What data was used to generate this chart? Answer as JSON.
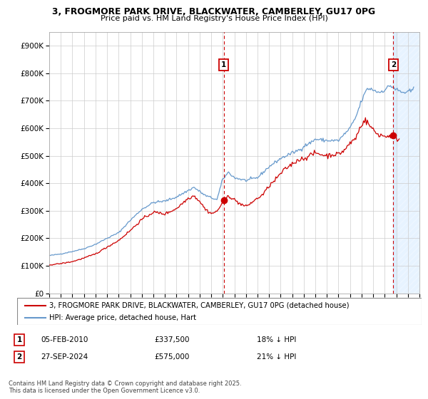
{
  "title1": "3, FROGMORE PARK DRIVE, BLACKWATER, CAMBERLEY, GU17 0PG",
  "title2": "Price paid vs. HM Land Registry's House Price Index (HPI)",
  "legend_entry1": "3, FROGMORE PARK DRIVE, BLACKWATER, CAMBERLEY, GU17 0PG (detached house)",
  "legend_entry2": "HPI: Average price, detached house, Hart",
  "annotation1_label": "1",
  "annotation1_date": "05-FEB-2010",
  "annotation1_price": "£337,500",
  "annotation1_hpi": "18% ↓ HPI",
  "annotation2_label": "2",
  "annotation2_date": "27-SEP-2024",
  "annotation2_price": "£575,000",
  "annotation2_hpi": "21% ↓ HPI",
  "footer": "Contains HM Land Registry data © Crown copyright and database right 2025.\nThis data is licensed under the Open Government Licence v3.0.",
  "color_red": "#cc0000",
  "color_blue": "#6699cc",
  "color_vline": "#cc0000",
  "bg_color": "#ffffff",
  "grid_color": "#cccccc",
  "shade_color": "#ddeeff",
  "ylim_max": 950000,
  "yticks": [
    0,
    100000,
    200000,
    300000,
    400000,
    500000,
    600000,
    700000,
    800000,
    900000
  ],
  "ytick_labels": [
    "£0",
    "£100K",
    "£200K",
    "£300K",
    "£400K",
    "£500K",
    "£600K",
    "£700K",
    "£800K",
    "£900K"
  ],
  "xlim_min": 1995.0,
  "xlim_max": 2027.0,
  "xticks": [
    1995,
    1996,
    1997,
    1998,
    1999,
    2000,
    2001,
    2002,
    2003,
    2004,
    2005,
    2006,
    2007,
    2008,
    2009,
    2010,
    2011,
    2012,
    2013,
    2014,
    2015,
    2016,
    2017,
    2018,
    2019,
    2020,
    2021,
    2022,
    2023,
    2024,
    2025,
    2026,
    2027
  ],
  "vline1_x": 2010.09,
  "vline2_x": 2024.74,
  "marker1_x": 2010.09,
  "marker1_y": 337500,
  "marker2_x": 2024.74,
  "marker2_y": 575000,
  "hpi_anchors": [
    [
      1995.0,
      137000
    ],
    [
      1996.0,
      143000
    ],
    [
      1997.0,
      152000
    ],
    [
      1998.0,
      162000
    ],
    [
      1999.0,
      178000
    ],
    [
      2000.0,
      200000
    ],
    [
      2001.0,
      220000
    ],
    [
      2002.0,
      265000
    ],
    [
      2003.0,
      305000
    ],
    [
      2004.0,
      330000
    ],
    [
      2005.0,
      335000
    ],
    [
      2006.0,
      350000
    ],
    [
      2007.5,
      385000
    ],
    [
      2008.5,
      355000
    ],
    [
      2009.5,
      340000
    ],
    [
      2010.0,
      415000
    ],
    [
      2010.5,
      440000
    ],
    [
      2011.0,
      420000
    ],
    [
      2012.0,
      410000
    ],
    [
      2013.0,
      420000
    ],
    [
      2014.0,
      460000
    ],
    [
      2015.0,
      490000
    ],
    [
      2016.0,
      510000
    ],
    [
      2016.8,
      525000
    ],
    [
      2017.0,
      535000
    ],
    [
      2017.5,
      545000
    ],
    [
      2018.0,
      560000
    ],
    [
      2019.0,
      555000
    ],
    [
      2020.0,
      555000
    ],
    [
      2021.0,
      600000
    ],
    [
      2021.5,
      640000
    ],
    [
      2022.0,
      700000
    ],
    [
      2022.5,
      745000
    ],
    [
      2023.0,
      740000
    ],
    [
      2023.5,
      730000
    ],
    [
      2024.0,
      740000
    ],
    [
      2024.5,
      755000
    ],
    [
      2025.0,
      740000
    ],
    [
      2025.5,
      730000
    ],
    [
      2026.0,
      730000
    ],
    [
      2026.5,
      740000
    ]
  ],
  "prop_anchors": [
    [
      1995.0,
      103000
    ],
    [
      1996.0,
      108000
    ],
    [
      1997.0,
      115000
    ],
    [
      1998.0,
      128000
    ],
    [
      1999.0,
      143000
    ],
    [
      2000.0,
      168000
    ],
    [
      2001.0,
      192000
    ],
    [
      2002.0,
      228000
    ],
    [
      2003.0,
      268000
    ],
    [
      2004.0,
      295000
    ],
    [
      2005.0,
      288000
    ],
    [
      2006.0,
      308000
    ],
    [
      2007.0,
      345000
    ],
    [
      2007.5,
      355000
    ],
    [
      2008.0,
      335000
    ],
    [
      2008.5,
      305000
    ],
    [
      2009.0,
      290000
    ],
    [
      2009.5,
      297000
    ],
    [
      2010.09,
      337500
    ],
    [
      2010.5,
      355000
    ],
    [
      2011.0,
      340000
    ],
    [
      2011.5,
      325000
    ],
    [
      2012.0,
      315000
    ],
    [
      2012.5,
      330000
    ],
    [
      2013.0,
      345000
    ],
    [
      2013.5,
      360000
    ],
    [
      2014.0,
      390000
    ],
    [
      2014.5,
      410000
    ],
    [
      2015.0,
      435000
    ],
    [
      2015.5,
      455000
    ],
    [
      2016.0,
      470000
    ],
    [
      2016.5,
      485000
    ],
    [
      2017.0,
      490000
    ],
    [
      2017.5,
      500000
    ],
    [
      2018.0,
      510000
    ],
    [
      2018.5,
      505000
    ],
    [
      2019.0,
      500000
    ],
    [
      2019.5,
      505000
    ],
    [
      2020.0,
      505000
    ],
    [
      2020.5,
      520000
    ],
    [
      2021.0,
      545000
    ],
    [
      2021.5,
      565000
    ],
    [
      2022.0,
      615000
    ],
    [
      2022.3,
      630000
    ],
    [
      2022.6,
      615000
    ],
    [
      2023.0,
      595000
    ],
    [
      2023.3,
      580000
    ],
    [
      2023.7,
      575000
    ],
    [
      2024.0,
      570000
    ],
    [
      2024.74,
      575000
    ],
    [
      2025.0,
      560000
    ],
    [
      2025.3,
      565000
    ]
  ]
}
